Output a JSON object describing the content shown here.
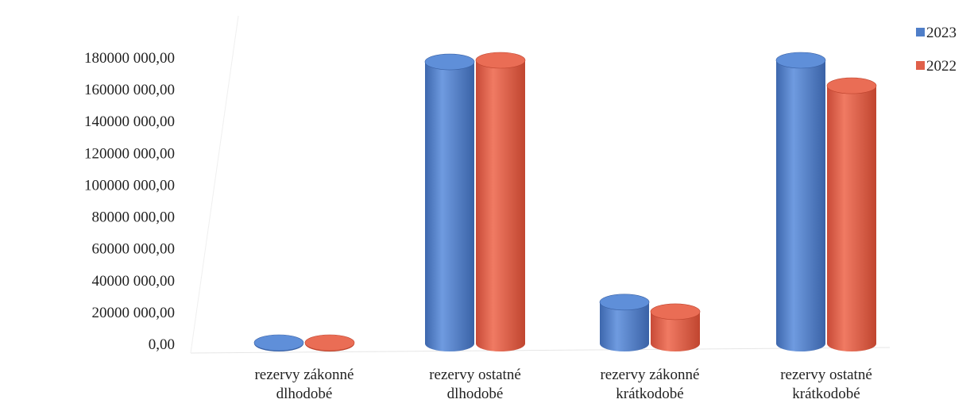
{
  "chart_data": {
    "type": "bar",
    "title": "",
    "xlabel": "",
    "ylabel": "",
    "categories": [
      [
        "rezervy zákonné",
        "dlhodobé"
      ],
      [
        "rezervy ostatné",
        "dlhodobé"
      ],
      [
        "rezervy zákonné",
        "krátkodobé"
      ],
      [
        "rezervy ostatné",
        "krátkodobé"
      ]
    ],
    "series": [
      {
        "name": "2023",
        "color": "#4f7ec8",
        "values": [
          500000,
          177000000,
          26000000,
          178000000
        ]
      },
      {
        "name": "2022",
        "color": "#e0604a",
        "values": [
          500000,
          178000000,
          20000000,
          162000000
        ]
      }
    ],
    "ylim": [
      0,
      180000000
    ],
    "yticks": [
      0,
      20000000,
      40000000,
      60000000,
      80000000,
      100000000,
      120000000,
      140000000,
      160000000,
      180000000
    ],
    "ytick_labels": [
      "0,00",
      "20000 000,00",
      "40000 000,00",
      "60000 000,00",
      "80000 000,00",
      "100000 000,00",
      "120000 000,00",
      "140000 000,00",
      "160000 000,00",
      "180000 000,00"
    ],
    "legend_position": "top-right",
    "grid": false,
    "style": "3d-cylinder"
  }
}
